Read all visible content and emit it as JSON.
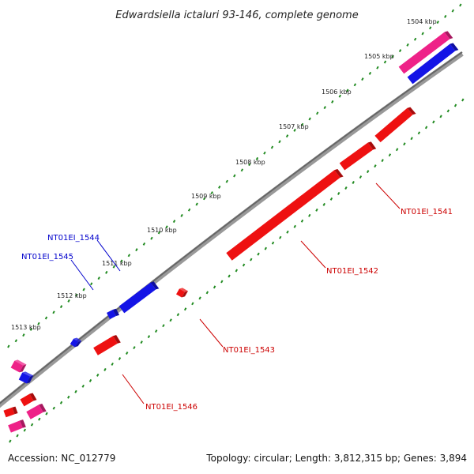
{
  "title": "Edwardsiella ictaluri 93-146, complete genome",
  "ticks": [
    "1504 kbp",
    "1505 kbp",
    "1506 kbp",
    "1507 kbp",
    "1508 kbp",
    "1509 kbp",
    "1510 kbp",
    "1511 kbp",
    "1512 kbp",
    "1513 kbp"
  ],
  "genes": [
    {
      "label": "NT01EI_1541",
      "strand": "reverse"
    },
    {
      "label": "NT01EI_1542",
      "strand": "reverse"
    },
    {
      "label": "NT01EI_1543",
      "strand": "reverse"
    },
    {
      "label": "NT01EI_1544",
      "strand": "forward"
    },
    {
      "label": "NT01EI_1545",
      "strand": "forward"
    },
    {
      "label": "NT01EI_1546",
      "strand": "reverse"
    }
  ],
  "colors": {
    "forward_gene": "#1414e6",
    "reverse_gene": "#ee1111",
    "rna_gene": "#ee2288",
    "backbone": "#777777",
    "tick_marks": "#228b22"
  },
  "footer": {
    "accession": "Accession: NC_012779",
    "summary": "Topology: circular; Length: 3,812,315 bp; Genes: 3,894"
  }
}
